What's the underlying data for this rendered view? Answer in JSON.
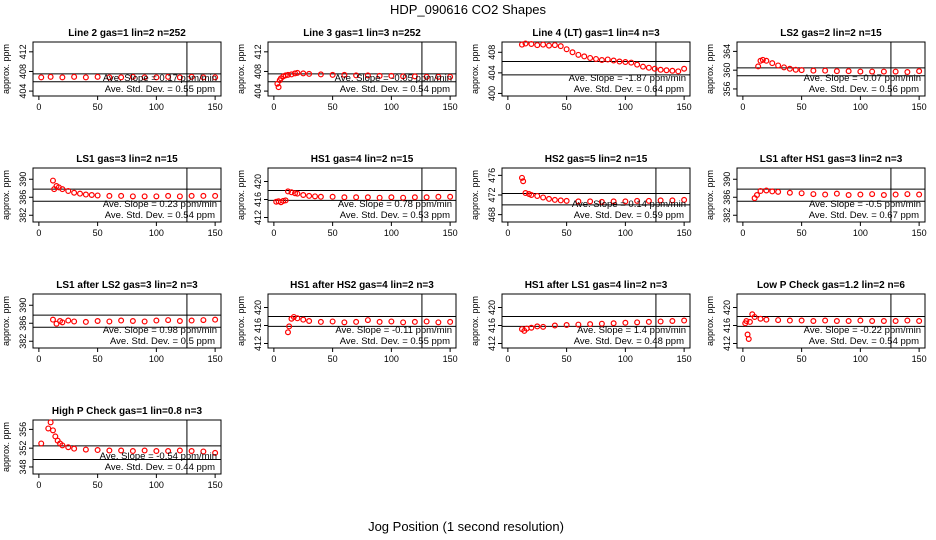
{
  "figure": {
    "title": "HDP_090616  CO2 Shapes",
    "xlabel": "Jog Position (1 second resolution)"
  },
  "chart_data": [
    {
      "type": "scatter",
      "title": "Line 2 gas=1 lin=2 n=252",
      "ylabel": "approx. ppm",
      "xlim": [
        -5,
        155
      ],
      "ylim": [
        403,
        414
      ],
      "yticks": [
        404,
        408,
        412
      ],
      "xticks": [
        0,
        50,
        100,
        150
      ],
      "hlines": [
        407.5,
        405.9
      ],
      "vline": 126,
      "color": "#ff0000",
      "stats": {
        "slope_label": "Ave. Slope =",
        "slope": "0.17",
        "slope_unit": "ppm/min",
        "sd_label": "Ave. Std. Dev. =",
        "sd": "0.55",
        "sd_unit": "ppm"
      },
      "x": [
        2,
        10,
        20,
        30,
        40,
        50,
        60,
        70,
        80,
        90,
        100,
        110,
        120,
        130,
        140,
        150
      ],
      "y": [
        406.8,
        406.9,
        406.8,
        406.9,
        406.8,
        406.9,
        406.8,
        406.8,
        406.9,
        406.8,
        406.8,
        406.9,
        406.8,
        406.9,
        406.8,
        406.8
      ]
    },
    {
      "type": "scatter",
      "title": "Line 3 gas=1 lin=3 n=252",
      "ylabel": "approx. ppm",
      "xlim": [
        -5,
        155
      ],
      "ylim": [
        403,
        414
      ],
      "yticks": [
        404,
        408,
        412
      ],
      "xticks": [
        0,
        50,
        100,
        150
      ],
      "hlines": [
        407.5,
        405.9
      ],
      "vline": 126,
      "color": "#ff0000",
      "stats": {
        "slope_label": "Ave. Slope =",
        "slope": "-0.05",
        "slope_unit": "ppm/min",
        "sd_label": "Ave. Std. Dev. =",
        "sd": "0.54",
        "sd_unit": "ppm"
      },
      "x": [
        3,
        4,
        5,
        6,
        8,
        10,
        12,
        15,
        18,
        20,
        25,
        30,
        40,
        50,
        60,
        70,
        80,
        90,
        100,
        110,
        120,
        130,
        140,
        150
      ],
      "y": [
        405.5,
        404.8,
        406.2,
        406.6,
        407.0,
        407.2,
        407.3,
        407.4,
        407.6,
        407.7,
        407.6,
        407.5,
        407.4,
        407.3,
        407.3,
        407.2,
        407.2,
        407.1,
        407.1,
        407.0,
        407.0,
        406.9,
        406.9,
        406.9
      ]
    },
    {
      "type": "scatter",
      "title": "Line 4 (LT) gas=1 lin=4 n=3",
      "ylabel": "approx. ppm",
      "xlim": [
        -5,
        155
      ],
      "ylim": [
        399.5,
        410
      ],
      "yticks": [
        400,
        404,
        408
      ],
      "xticks": [
        0,
        50,
        100,
        150
      ],
      "hlines": [
        406.2,
        403.6
      ],
      "vline": 126,
      "color": "#ff0000",
      "stats": {
        "slope_label": "Ave. Slope =",
        "slope": "-1.87",
        "slope_unit": "ppm/min",
        "sd_label": "Ave. Std. Dev. =",
        "sd": "0.64",
        "sd_unit": "ppm"
      },
      "x": [
        12,
        15,
        20,
        25,
        30,
        35,
        40,
        45,
        50,
        55,
        60,
        65,
        70,
        75,
        80,
        85,
        90,
        95,
        100,
        105,
        110,
        115,
        120,
        125,
        130,
        135,
        140,
        145,
        150
      ],
      "y": [
        409.5,
        409.7,
        409.6,
        409.4,
        409.5,
        409.3,
        409.4,
        409.2,
        408.6,
        408.0,
        407.5,
        407.2,
        406.9,
        406.7,
        406.5,
        406.6,
        406.4,
        406.2,
        406.1,
        406.0,
        405.6,
        405.2,
        405.0,
        404.8,
        404.6,
        404.5,
        404.4,
        404.3,
        404.8
      ]
    },
    {
      "type": "scatter",
      "title": "LS2 gas=2 lin=2 n=15",
      "ylabel": "approx. ppm",
      "xlim": [
        -5,
        155
      ],
      "ylim": [
        354.5,
        366
      ],
      "yticks": [
        356,
        360,
        364
      ],
      "xticks": [
        0,
        50,
        100,
        150
      ],
      "hlines": [
        360.5,
        358.8
      ],
      "vline": 126,
      "color": "#ff0000",
      "stats": {
        "slope_label": "Ave. Slope =",
        "slope": "-0.07",
        "slope_unit": "ppm/min",
        "sd_label": "Ave. Std. Dev. =",
        "sd": "0.56",
        "sd_unit": "ppm"
      },
      "x": [
        13,
        15,
        17,
        20,
        25,
        30,
        35,
        40,
        45,
        50,
        60,
        70,
        80,
        90,
        100,
        110,
        120,
        130,
        140,
        150
      ],
      "y": [
        360.8,
        362.0,
        362.2,
        362.0,
        361.5,
        361.0,
        360.6,
        360.3,
        360.1,
        360.0,
        359.9,
        359.9,
        359.8,
        359.8,
        359.7,
        359.7,
        359.7,
        359.7,
        359.6,
        359.8
      ]
    },
    {
      "type": "scatter",
      "title": "LS1 gas=3 lin=2 n=15",
      "ylabel": "approx. ppm",
      "xlim": [
        -5,
        155
      ],
      "ylim": [
        380.5,
        392.5
      ],
      "yticks": [
        382,
        386,
        390
      ],
      "xticks": [
        0,
        50,
        100,
        150
      ],
      "hlines": [
        387.8,
        385.1
      ],
      "vline": 126,
      "color": "#ff0000",
      "stats": {
        "slope_label": "Ave. Slope =",
        "slope": "0.23",
        "slope_unit": "ppm/min",
        "sd_label": "Ave. Std. Dev. =",
        "sd": "0.54",
        "sd_unit": "ppm"
      },
      "x": [
        12,
        13,
        15,
        17,
        20,
        25,
        30,
        35,
        40,
        45,
        50,
        60,
        70,
        80,
        90,
        100,
        110,
        120,
        130,
        140,
        150
      ],
      "y": [
        389.7,
        387.8,
        388.5,
        388.2,
        387.8,
        387.4,
        387.0,
        386.8,
        386.6,
        386.5,
        386.4,
        386.3,
        386.3,
        386.2,
        386.2,
        386.2,
        386.3,
        386.2,
        386.3,
        386.3,
        386.3
      ]
    },
    {
      "type": "scatter",
      "title": "HS1 gas=4 lin=2 n=15",
      "ylabel": "approx. ppm",
      "xlim": [
        -5,
        155
      ],
      "ylim": [
        411,
        423
      ],
      "yticks": [
        412,
        416,
        420
      ],
      "xticks": [
        0,
        50,
        100,
        150
      ],
      "hlines": [
        418.0,
        415.8
      ],
      "vline": 126,
      "color": "#ff0000",
      "stats": {
        "slope_label": "Ave. Slope =",
        "slope": "0.78",
        "slope_unit": "ppm/min",
        "sd_label": "Ave. Std. Dev. =",
        "sd": "0.53",
        "sd_unit": "ppm"
      },
      "x": [
        2,
        4,
        6,
        8,
        10,
        12,
        15,
        18,
        20,
        25,
        30,
        35,
        40,
        50,
        60,
        70,
        80,
        90,
        100,
        110,
        120,
        130,
        140,
        150
      ],
      "y": [
        415.5,
        415.6,
        415.4,
        415.7,
        415.8,
        417.8,
        417.6,
        417.4,
        417.3,
        417.0,
        416.8,
        416.7,
        416.6,
        416.6,
        416.5,
        416.5,
        416.5,
        416.4,
        416.5,
        416.4,
        416.5,
        416.5,
        416.6,
        416.6
      ]
    },
    {
      "type": "scatter",
      "title": "HS2 gas=5 lin=2 n=15",
      "ylabel": "approx. ppm",
      "xlim": [
        -5,
        155
      ],
      "ylim": [
        466.5,
        477.5
      ],
      "yticks": [
        468,
        472,
        476
      ],
      "xticks": [
        0,
        50,
        100,
        150
      ],
      "hlines": [
        472.3,
        470.0
      ],
      "vline": 126,
      "color": "#ff0000",
      "stats": {
        "slope_label": "Ave. Slope =",
        "slope": "0.14",
        "slope_unit": "ppm/min",
        "sd_label": "Ave. Std. Dev. =",
        "sd": "0.59",
        "sd_unit": "ppm"
      },
      "x": [
        12,
        13,
        15,
        18,
        20,
        25,
        30,
        35,
        40,
        45,
        50,
        60,
        70,
        80,
        90,
        100,
        110,
        120,
        130,
        140,
        150
      ],
      "y": [
        475.5,
        474.8,
        472.4,
        472.2,
        472.0,
        471.8,
        471.5,
        471.2,
        471.0,
        470.9,
        470.8,
        470.7,
        470.7,
        470.6,
        470.7,
        470.7,
        470.8,
        470.8,
        470.9,
        470.9,
        471.0
      ]
    },
    {
      "type": "scatter",
      "title": "LS1 after HS1 gas=3 lin=2 n=3",
      "ylabel": "approx. ppm",
      "xlim": [
        -5,
        155
      ],
      "ylim": [
        380.5,
        392.5
      ],
      "yticks": [
        382,
        386,
        390
      ],
      "xticks": [
        0,
        50,
        100,
        150
      ],
      "hlines": [
        387.8,
        385.1
      ],
      "vline": 126,
      "color": "#ff0000",
      "stats": {
        "slope_label": "Ave. Slope =",
        "slope": "-0.5",
        "slope_unit": "ppm/min",
        "sd_label": "Ave. Std. Dev. =",
        "sd": "0.67",
        "sd_unit": "ppm"
      },
      "x": [
        10,
        12,
        15,
        20,
        25,
        30,
        40,
        50,
        60,
        70,
        80,
        90,
        100,
        110,
        120,
        130,
        140,
        150
      ],
      "y": [
        385.8,
        386.5,
        387.4,
        387.5,
        387.3,
        387.2,
        387.0,
        386.9,
        386.7,
        386.6,
        386.8,
        386.5,
        386.6,
        386.7,
        386.5,
        386.6,
        386.7,
        386.6
      ]
    },
    {
      "type": "scatter",
      "title": "LS1 after LS2 gas=3 lin=2 n=3",
      "ylabel": "approx. ppm",
      "xlim": [
        -5,
        155
      ],
      "ylim": [
        380.5,
        392.5
      ],
      "yticks": [
        382,
        386,
        390
      ],
      "xticks": [
        0,
        50,
        100,
        150
      ],
      "hlines": [
        387.8,
        385.1
      ],
      "vline": 126,
      "color": "#ff0000",
      "stats": {
        "slope_label": "Ave. Slope =",
        "slope": "0.98",
        "slope_unit": "ppm/min",
        "sd_label": "Ave. Std. Dev. =",
        "sd": "0.5",
        "sd_unit": "ppm"
      },
      "x": [
        12,
        15,
        18,
        20,
        25,
        30,
        40,
        50,
        60,
        70,
        80,
        90,
        100,
        110,
        120,
        130,
        140,
        150
      ],
      "y": [
        386.8,
        385.9,
        386.5,
        386.2,
        386.6,
        386.4,
        386.3,
        386.5,
        386.4,
        386.6,
        386.5,
        386.4,
        386.6,
        386.7,
        386.5,
        386.6,
        386.7,
        386.8
      ]
    },
    {
      "type": "scatter",
      "title": "HS1 after HS2 gas=4 lin=2 n=3",
      "ylabel": "approx. ppm",
      "xlim": [
        -5,
        155
      ],
      "ylim": [
        411,
        423
      ],
      "yticks": [
        412,
        416,
        420
      ],
      "xticks": [
        0,
        50,
        100,
        150
      ],
      "hlines": [
        418.0,
        415.8
      ],
      "vline": 126,
      "color": "#ff0000",
      "stats": {
        "slope_label": "Ave. Slope =",
        "slope": "-0.11",
        "slope_unit": "ppm/min",
        "sd_label": "Ave. Std. Dev. =",
        "sd": "0.55",
        "sd_unit": "ppm"
      },
      "x": [
        12,
        13,
        15,
        17,
        20,
        25,
        30,
        40,
        50,
        60,
        70,
        80,
        90,
        100,
        110,
        120,
        130,
        140,
        150
      ],
      "y": [
        414.5,
        415.8,
        417.5,
        417.9,
        417.6,
        417.3,
        417.0,
        416.8,
        416.9,
        416.7,
        416.8,
        417.2,
        416.8,
        416.9,
        416.7,
        416.8,
        416.9,
        416.7,
        416.8
      ]
    },
    {
      "type": "scatter",
      "title": "HS1 after LS1 gas=4 lin=2 n=3",
      "ylabel": "approx. ppm",
      "xlim": [
        -5,
        155
      ],
      "ylim": [
        411,
        423
      ],
      "yticks": [
        412,
        416,
        420
      ],
      "xticks": [
        0,
        50,
        100,
        150
      ],
      "hlines": [
        418.0,
        415.8
      ],
      "vline": 126,
      "color": "#ff0000",
      "stats": {
        "slope_label": "Ave. Slope =",
        "slope": "1.4",
        "slope_unit": "ppm/min",
        "sd_label": "Ave. Std. Dev. =",
        "sd": "0.48",
        "sd_unit": "ppm"
      },
      "x": [
        12,
        14,
        16,
        20,
        25,
        30,
        40,
        50,
        60,
        70,
        80,
        90,
        100,
        110,
        120,
        130,
        140,
        150
      ],
      "y": [
        415.2,
        414.8,
        415.3,
        415.5,
        415.8,
        415.7,
        416.0,
        416.1,
        416.2,
        416.3,
        416.4,
        416.5,
        416.6,
        416.7,
        416.8,
        416.9,
        417.0,
        417.1
      ]
    },
    {
      "type": "scatter",
      "title": "Low P Check gas=1.2 lin=2 n=6",
      "ylabel": "approx. ppm",
      "xlim": [
        -5,
        155
      ],
      "ylim": [
        411,
        423
      ],
      "yticks": [
        412,
        416,
        420
      ],
      "xticks": [
        0,
        50,
        100,
        150
      ],
      "hlines": [
        418.0,
        415.8
      ],
      "vline": 126,
      "color": "#ff0000",
      "stats": {
        "slope_label": "Ave. Slope =",
        "slope": "-0.22",
        "slope_unit": "ppm/min",
        "sd_label": "Ave. Std. Dev. =",
        "sd": "0.54",
        "sd_unit": "ppm"
      },
      "x": [
        2,
        3,
        4,
        5,
        6,
        8,
        10,
        15,
        20,
        30,
        40,
        50,
        60,
        70,
        80,
        90,
        100,
        110,
        120,
        130,
        140,
        150
      ],
      "y": [
        416.5,
        417.0,
        414.0,
        413.0,
        416.8,
        418.5,
        417.9,
        417.5,
        417.3,
        417.2,
        417.1,
        417.1,
        417.0,
        417.1,
        417.0,
        417.0,
        417.1,
        417.0,
        417.0,
        417.0,
        417.1,
        417.0
      ]
    },
    {
      "type": "scatter",
      "title": "High P Check gas=1 lin=0.8 n=3",
      "ylabel": "approx. ppm",
      "xlim": [
        -5,
        155
      ],
      "ylim": [
        346.5,
        358
      ],
      "yticks": [
        348,
        352,
        356
      ],
      "xticks": [
        0,
        50,
        100,
        150
      ],
      "hlines": [
        352.5,
        349.6
      ],
      "vline": 126,
      "color": "#ff0000",
      "stats": {
        "slope_label": "Ave. Slope =",
        "slope": "-0.54",
        "slope_unit": "ppm/min",
        "sd_label": "Ave. Std. Dev. =",
        "sd": "0.44",
        "sd_unit": "ppm"
      },
      "x": [
        2,
        8,
        10,
        12,
        14,
        16,
        18,
        20,
        25,
        30,
        40,
        50,
        60,
        70,
        80,
        90,
        100,
        110,
        120,
        130,
        140,
        150
      ],
      "y": [
        353.0,
        356.2,
        357.5,
        355.8,
        354.5,
        353.6,
        353.0,
        352.6,
        352.2,
        351.9,
        351.7,
        351.6,
        351.5,
        351.5,
        351.4,
        351.5,
        351.4,
        351.4,
        351.5,
        351.4,
        351.3,
        351.0
      ]
    }
  ]
}
